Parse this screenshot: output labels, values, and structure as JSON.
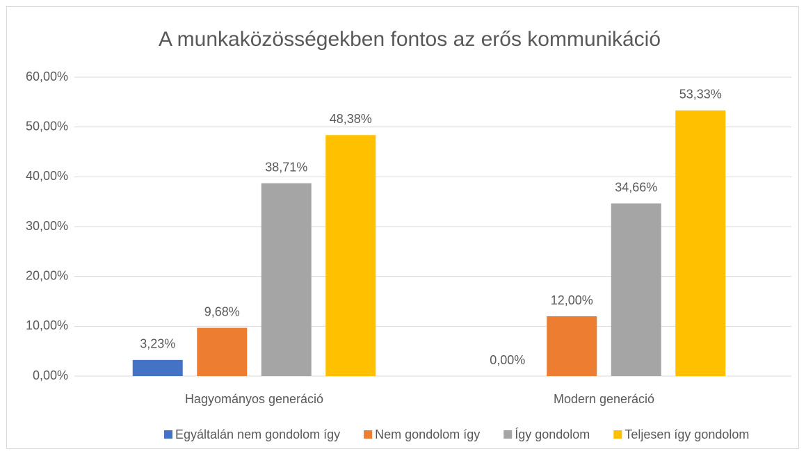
{
  "chart_data": {
    "type": "bar",
    "title": "A munkaközösségekben fontos az erős kommunikáció",
    "categories": [
      "Hagyományos generáció",
      "Modern generáció"
    ],
    "series": [
      {
        "name": "Egyáltalán nem gondolom így",
        "color": "#4472c4",
        "values": [
          3.23,
          0
        ],
        "value_labels": [
          "3,23%",
          "0,00%"
        ]
      },
      {
        "name": "Nem gondolom így",
        "color": "#ed7d31",
        "values": [
          9.68,
          12
        ],
        "value_labels": [
          "9,68%",
          "12,00%"
        ]
      },
      {
        "name": "Így gondolom",
        "color": "#a5a5a5",
        "values": [
          38.71,
          34.66
        ],
        "value_labels": [
          "38,71%",
          "34,66%"
        ]
      },
      {
        "name": "Teljesen így gondolom",
        "color": "#ffc000",
        "values": [
          48.38,
          53.33
        ],
        "value_labels": [
          "48,38%",
          "53,33%"
        ]
      }
    ],
    "ylim": [
      0,
      60
    ],
    "yticks": [
      {
        "value": 0,
        "label": "0,00%"
      },
      {
        "value": 10,
        "label": "10,00%"
      },
      {
        "value": 20,
        "label": "20,00%"
      },
      {
        "value": 30,
        "label": "30,00%"
      },
      {
        "value": 40,
        "label": "40,00%"
      },
      {
        "value": 50,
        "label": "50,00%"
      },
      {
        "value": 60,
        "label": "60,00%"
      }
    ],
    "grid": true,
    "legend": "bottom"
  }
}
